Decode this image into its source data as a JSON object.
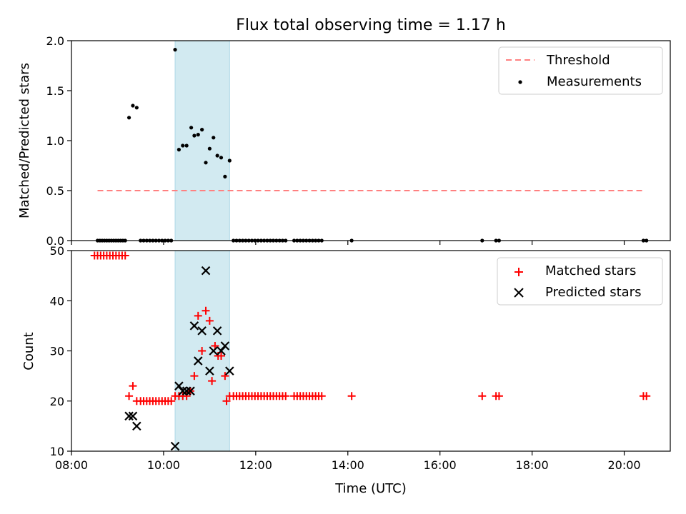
{
  "chart_data": [
    {
      "type": "scatter",
      "title": "Flux total observing time = 1.17 h",
      "xlabel": "",
      "ylabel": "Matched/Predicted stars",
      "xlim": [
        "08:00",
        "21:00"
      ],
      "ylim": [
        0,
        2.0
      ],
      "yticks": [
        "0.0",
        "0.5",
        "1.0",
        "1.5",
        "2.0"
      ],
      "shaded_span": {
        "start": "10:15",
        "end": "11:26",
        "color": "#add8e6"
      },
      "legend_position": "top-right",
      "threshold": {
        "label": "Threshold",
        "value": 0.5,
        "x_start": "08:34",
        "x_end": "20:25",
        "color": "#ff8080"
      },
      "series": [
        {
          "name": "Measurements",
          "color": "#000000",
          "points": [
            [
              "08:34",
              0
            ],
            [
              "08:37",
              0
            ],
            [
              "08:40",
              0
            ],
            [
              "08:43",
              0
            ],
            [
              "08:46",
              0
            ],
            [
              "08:49",
              0
            ],
            [
              "08:52",
              0
            ],
            [
              "08:55",
              0
            ],
            [
              "08:58",
              0
            ],
            [
              "09:01",
              0
            ],
            [
              "09:04",
              0
            ],
            [
              "09:07",
              0
            ],
            [
              "09:10",
              0
            ],
            [
              "09:15",
              1.23
            ],
            [
              "09:20",
              1.35
            ],
            [
              "09:25",
              1.33
            ],
            [
              "09:30",
              0
            ],
            [
              "09:34",
              0
            ],
            [
              "09:38",
              0
            ],
            [
              "09:42",
              0
            ],
            [
              "09:46",
              0
            ],
            [
              "09:50",
              0
            ],
            [
              "09:54",
              0
            ],
            [
              "09:58",
              0
            ],
            [
              "10:02",
              0
            ],
            [
              "10:06",
              0
            ],
            [
              "10:10",
              0
            ],
            [
              "10:15",
              1.91
            ],
            [
              "10:20",
              0.91
            ],
            [
              "10:25",
              0.95
            ],
            [
              "10:30",
              0.95
            ],
            [
              "10:36",
              1.13
            ],
            [
              "10:40",
              1.05
            ],
            [
              "10:45",
              1.06
            ],
            [
              "10:50",
              1.11
            ],
            [
              "10:55",
              0.78
            ],
            [
              "11:00",
              0.92
            ],
            [
              "11:05",
              1.03
            ],
            [
              "11:10",
              0.85
            ],
            [
              "11:15",
              0.83
            ],
            [
              "11:20",
              0.64
            ],
            [
              "11:26",
              0.8
            ],
            [
              "11:31",
              0
            ],
            [
              "11:35",
              0
            ],
            [
              "11:39",
              0
            ],
            [
              "11:43",
              0
            ],
            [
              "11:47",
              0
            ],
            [
              "11:51",
              0
            ],
            [
              "11:55",
              0
            ],
            [
              "11:59",
              0
            ],
            [
              "12:03",
              0
            ],
            [
              "12:07",
              0
            ],
            [
              "12:11",
              0
            ],
            [
              "12:15",
              0
            ],
            [
              "12:19",
              0
            ],
            [
              "12:23",
              0
            ],
            [
              "12:27",
              0
            ],
            [
              "12:31",
              0
            ],
            [
              "12:35",
              0
            ],
            [
              "12:39",
              0
            ],
            [
              "12:50",
              0
            ],
            [
              "12:54",
              0
            ],
            [
              "12:58",
              0
            ],
            [
              "13:02",
              0
            ],
            [
              "13:06",
              0
            ],
            [
              "13:10",
              0
            ],
            [
              "13:14",
              0
            ],
            [
              "13:18",
              0
            ],
            [
              "13:22",
              0
            ],
            [
              "13:26",
              0
            ],
            [
              "14:05",
              0
            ],
            [
              "16:55",
              0
            ],
            [
              "17:13",
              0
            ],
            [
              "17:17",
              0
            ],
            [
              "20:25",
              0
            ],
            [
              "20:29",
              0
            ]
          ]
        }
      ]
    },
    {
      "type": "scatter",
      "title": "",
      "xlabel": "Time (UTC)",
      "ylabel": "Count",
      "xlim": [
        "08:00",
        "21:00"
      ],
      "ylim": [
        10,
        50
      ],
      "yticks": [
        "10",
        "20",
        "30",
        "40",
        "50"
      ],
      "xticks": [
        "08:00",
        "10:00",
        "12:00",
        "14:00",
        "16:00",
        "18:00",
        "20:00"
      ],
      "shaded_span": {
        "start": "10:15",
        "end": "11:26",
        "color": "#add8e6"
      },
      "legend_position": "top-right",
      "series": [
        {
          "name": "Matched stars",
          "marker": "+",
          "color": "#ff0000",
          "points": [
            [
              "08:30",
              49
            ],
            [
              "08:34",
              49
            ],
            [
              "08:38",
              49
            ],
            [
              "08:42",
              49
            ],
            [
              "08:46",
              49
            ],
            [
              "08:50",
              49
            ],
            [
              "08:54",
              49
            ],
            [
              "08:58",
              49
            ],
            [
              "09:02",
              49
            ],
            [
              "09:06",
              49
            ],
            [
              "09:10",
              49
            ],
            [
              "09:15",
              21
            ],
            [
              "09:20",
              23
            ],
            [
              "09:25",
              20
            ],
            [
              "09:30",
              20
            ],
            [
              "09:34",
              20
            ],
            [
              "09:38",
              20
            ],
            [
              "09:42",
              20
            ],
            [
              "09:46",
              20
            ],
            [
              "09:50",
              20
            ],
            [
              "09:54",
              20
            ],
            [
              "09:58",
              20
            ],
            [
              "10:02",
              20
            ],
            [
              "10:06",
              20
            ],
            [
              "10:10",
              20
            ],
            [
              "10:15",
              21
            ],
            [
              "10:20",
              21
            ],
            [
              "10:25",
              21
            ],
            [
              "10:30",
              21
            ],
            [
              "10:35",
              22
            ],
            [
              "10:40",
              25
            ],
            [
              "10:45",
              37
            ],
            [
              "10:50",
              30
            ],
            [
              "10:55",
              38
            ],
            [
              "11:00",
              36
            ],
            [
              "11:03",
              24
            ],
            [
              "11:07",
              31
            ],
            [
              "11:11",
              29
            ],
            [
              "11:15",
              29
            ],
            [
              "11:20",
              25
            ],
            [
              "11:22",
              20
            ],
            [
              "11:26",
              21
            ],
            [
              "11:31",
              21
            ],
            [
              "11:35",
              21
            ],
            [
              "11:39",
              21
            ],
            [
              "11:43",
              21
            ],
            [
              "11:47",
              21
            ],
            [
              "11:51",
              21
            ],
            [
              "11:55",
              21
            ],
            [
              "11:59",
              21
            ],
            [
              "12:03",
              21
            ],
            [
              "12:07",
              21
            ],
            [
              "12:11",
              21
            ],
            [
              "12:15",
              21
            ],
            [
              "12:19",
              21
            ],
            [
              "12:23",
              21
            ],
            [
              "12:27",
              21
            ],
            [
              "12:31",
              21
            ],
            [
              "12:35",
              21
            ],
            [
              "12:39",
              21
            ],
            [
              "12:50",
              21
            ],
            [
              "12:54",
              21
            ],
            [
              "12:58",
              21
            ],
            [
              "13:02",
              21
            ],
            [
              "13:06",
              21
            ],
            [
              "13:10",
              21
            ],
            [
              "13:14",
              21
            ],
            [
              "13:18",
              21
            ],
            [
              "13:22",
              21
            ],
            [
              "13:26",
              21
            ],
            [
              "14:05",
              21
            ],
            [
              "16:55",
              21
            ],
            [
              "17:13",
              21
            ],
            [
              "17:17",
              21
            ],
            [
              "20:25",
              21
            ],
            [
              "20:29",
              21
            ]
          ]
        },
        {
          "name": "Predicted stars",
          "marker": "x",
          "color": "#000000",
          "points": [
            [
              "09:15",
              17
            ],
            [
              "09:20",
              17
            ],
            [
              "09:25",
              15
            ],
            [
              "10:15",
              11
            ],
            [
              "10:20",
              23
            ],
            [
              "10:25",
              22
            ],
            [
              "10:30",
              22
            ],
            [
              "10:35",
              22
            ],
            [
              "10:40",
              35
            ],
            [
              "10:45",
              28
            ],
            [
              "10:50",
              34
            ],
            [
              "10:55",
              46
            ],
            [
              "11:00",
              26
            ],
            [
              "11:05",
              30
            ],
            [
              "11:10",
              34
            ],
            [
              "11:15",
              30
            ],
            [
              "11:20",
              31
            ],
            [
              "11:26",
              26
            ]
          ]
        }
      ]
    }
  ]
}
